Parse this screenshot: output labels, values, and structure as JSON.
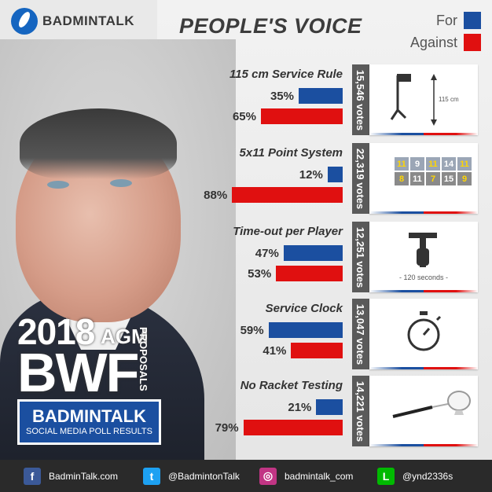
{
  "brand": {
    "name": "BADMINTALK"
  },
  "title": "PEOPLE'S VOICE",
  "legend": {
    "for": "For",
    "against": "Against"
  },
  "colors": {
    "for": "#1b4fa0",
    "against": "#e01010"
  },
  "headline": {
    "year": "2018",
    "agm": "AGM",
    "org": "BWF",
    "proposals": "PROPOSALS"
  },
  "poll_box": {
    "line1": "BADMINTALK",
    "line2": "SOCIAL MEDIA POLL RESULTS"
  },
  "chart_data": {
    "type": "bar",
    "categories": [
      "115 cm Service Rule",
      "5x11 Point System",
      "Time-out per Player",
      "Service Clock",
      "No Racket Testing"
    ],
    "series": [
      {
        "name": "For",
        "values": [
          35,
          12,
          47,
          59,
          21
        ]
      },
      {
        "name": "Against",
        "values": [
          65,
          88,
          53,
          41,
          79
        ]
      }
    ],
    "value_labels_for": [
      "35%",
      "12%",
      "47%",
      "59%",
      "21%"
    ],
    "value_labels_against": [
      "65%",
      "88%",
      "53%",
      "41%",
      "79%"
    ],
    "votes": [
      "15,546 votes",
      "22,319 votes",
      "12,251 votes",
      "13,047 votes",
      "14,221 votes"
    ],
    "unit": "%",
    "ylim": [
      0,
      100
    ],
    "legend_position": "top-right"
  },
  "cards": {
    "service_rule": {
      "label": "115 cm"
    },
    "score_grid": {
      "row1": [
        "11",
        "9",
        "11",
        "14",
        "11"
      ],
      "row2": [
        "8",
        "11",
        "7",
        "15",
        "9"
      ]
    },
    "timeout": {
      "label": "- 120 seconds -"
    }
  },
  "footer": [
    {
      "icon": "facebook-icon",
      "glyph": "f",
      "color": "#3b5998",
      "text": "BadminTalk.com"
    },
    {
      "icon": "twitter-icon",
      "glyph": "t",
      "color": "#1da1f2",
      "text": "@BadmintonTalk"
    },
    {
      "icon": "instagram-icon",
      "glyph": "◎",
      "color": "#c13584",
      "text": "badmintalk_com"
    },
    {
      "icon": "line-icon",
      "glyph": "L",
      "color": "#00b900",
      "text": "@ynd2336s"
    }
  ]
}
